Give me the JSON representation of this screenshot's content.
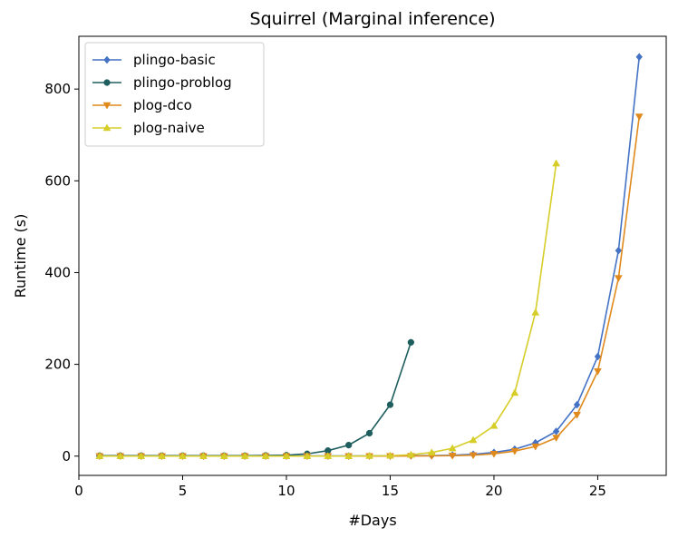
{
  "chart_data": {
    "type": "line",
    "title": "Squirrel (Marginal inference)",
    "xlabel": "#Days",
    "ylabel": "Runtime (s)",
    "xlim": [
      0,
      28.3
    ],
    "ylim": [
      -42,
      915
    ],
    "xticks": [
      0,
      5,
      10,
      15,
      20,
      25
    ],
    "yticks": [
      0,
      200,
      400,
      600,
      800
    ],
    "grid": false,
    "legend_position": "top-left",
    "series": [
      {
        "name": "plingo-basic",
        "color": "#4472c4",
        "marker": "diamond",
        "x": [
          1,
          2,
          3,
          4,
          5,
          6,
          7,
          8,
          9,
          10,
          11,
          12,
          13,
          14,
          15,
          16,
          17,
          18,
          19,
          20,
          21,
          22,
          23,
          24,
          25,
          26,
          27
        ],
        "y": [
          0.5,
          0.5,
          0.5,
          0.5,
          0.5,
          0.5,
          0.5,
          0.5,
          0.5,
          0.5,
          0.5,
          0.5,
          0.5,
          0.5,
          0.6,
          0.8,
          1.2,
          2,
          4,
          8,
          15,
          29,
          54,
          112,
          217,
          448,
          870
        ]
      },
      {
        "name": "plingo-problog",
        "color": "#1f5e5e",
        "marker": "circle",
        "x": [
          1,
          2,
          3,
          4,
          5,
          6,
          7,
          8,
          9,
          10,
          11,
          12,
          13,
          14,
          15,
          16
        ],
        "y": [
          1,
          1,
          1,
          1,
          1,
          1,
          1,
          1,
          1.5,
          2,
          5,
          12,
          24,
          50,
          112,
          248
        ]
      },
      {
        "name": "plog-dco",
        "color": "#e08a1e",
        "marker": "triangle-down",
        "x": [
          1,
          2,
          3,
          4,
          5,
          6,
          7,
          8,
          9,
          10,
          11,
          12,
          13,
          14,
          15,
          16,
          17,
          18,
          19,
          20,
          21,
          22,
          23,
          24,
          25,
          26,
          27
        ],
        "y": [
          0,
          0,
          0,
          0,
          0,
          0,
          0,
          0,
          0,
          0,
          0,
          0,
          0,
          0,
          0,
          0.3,
          0.5,
          1,
          2,
          5,
          11,
          21,
          40,
          90,
          185,
          388,
          740
        ]
      },
      {
        "name": "plog-naive",
        "color": "#d6cd28",
        "marker": "triangle-up",
        "x": [
          1,
          2,
          3,
          4,
          5,
          6,
          7,
          8,
          9,
          10,
          11,
          12,
          13,
          14,
          15,
          16,
          17,
          18,
          19,
          20,
          21,
          22,
          23
        ],
        "y": [
          0,
          0,
          0,
          0,
          0,
          0,
          0,
          0,
          0,
          0,
          0,
          0,
          0,
          0.5,
          1,
          3,
          8,
          17,
          35,
          66,
          138,
          313,
          638
        ]
      }
    ]
  }
}
